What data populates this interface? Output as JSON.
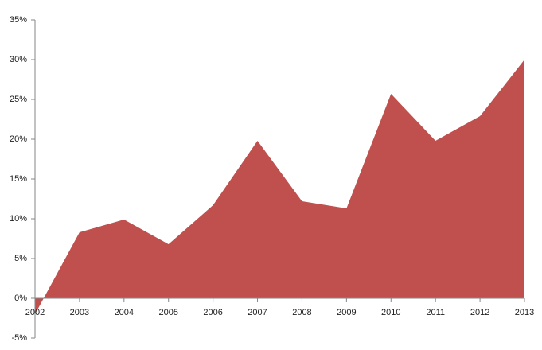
{
  "chart_data": {
    "type": "area",
    "categories": [
      "2002",
      "2003",
      "2004",
      "2005",
      "2006",
      "2007",
      "2008",
      "2009",
      "2010",
      "2011",
      "2012",
      "2013"
    ],
    "values": [
      -2,
      8.3,
      9.9,
      6.8,
      11.7,
      19.8,
      12.2,
      11.3,
      25.7,
      19.8,
      22.9,
      30
    ],
    "color": "#c0504d",
    "ylim": [
      -5,
      35
    ],
    "yticks": [
      {
        "value": -5,
        "label": "-5%"
      },
      {
        "value": 0,
        "label": "0%"
      },
      {
        "value": 5,
        "label": "5%"
      },
      {
        "value": 10,
        "label": "10%"
      },
      {
        "value": 15,
        "label": "15%"
      },
      {
        "value": 20,
        "label": "20%"
      },
      {
        "value": 25,
        "label": "25%"
      },
      {
        "value": 30,
        "label": "30%"
      },
      {
        "value": 35,
        "label": "35%"
      }
    ],
    "grid": false
  }
}
